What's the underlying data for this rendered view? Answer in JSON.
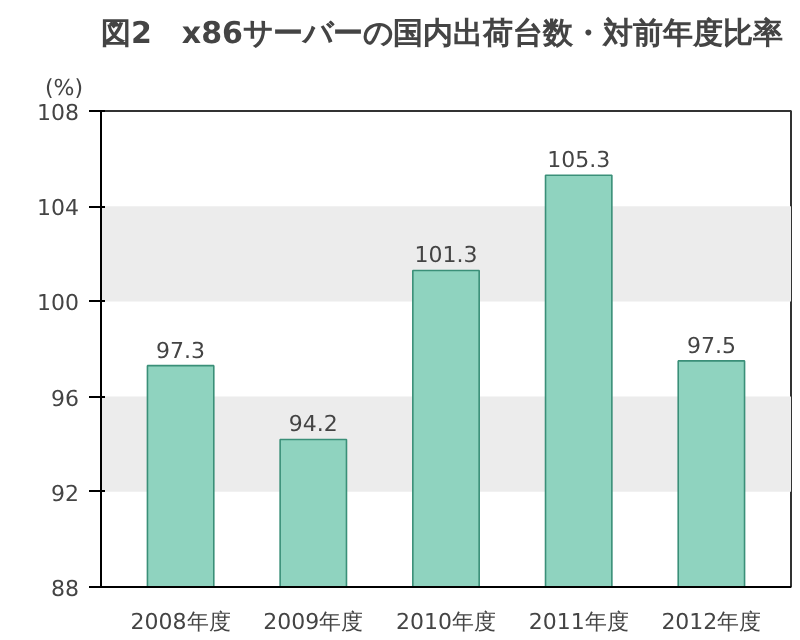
{
  "chart_data": {
    "type": "bar",
    "title": "図2　x86サーバーの国内出荷台数・対前年度比率",
    "ylabel": "(%)",
    "categories": [
      "2008年度",
      "2009年度",
      "2010年度",
      "2011年度",
      "2012年度"
    ],
    "values": [
      97.3,
      94.2,
      101.3,
      105.3,
      97.5
    ],
    "color": "#8fd3bf",
    "ylim": [
      88,
      108
    ],
    "yticks": [
      88,
      92,
      96,
      100,
      104,
      108
    ],
    "grid": false,
    "data_labels": true,
    "bands": [
      {
        "axis": "y",
        "from": 92,
        "to": 96,
        "color": "#ececec"
      },
      {
        "axis": "y",
        "from": 100,
        "to": 104,
        "color": "#ececec"
      }
    ]
  }
}
